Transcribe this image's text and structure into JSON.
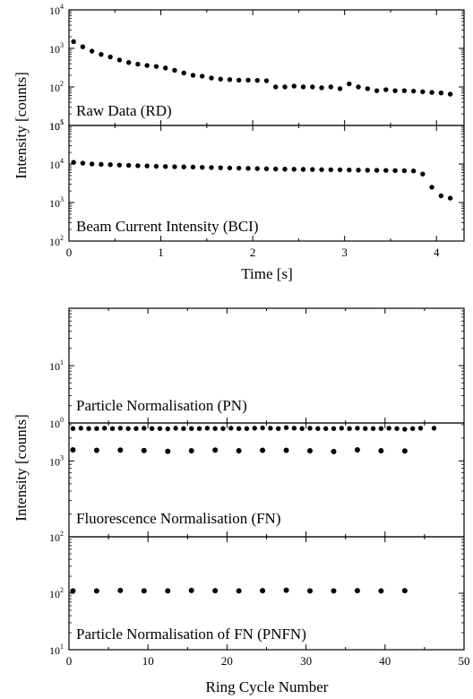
{
  "top_figure": {
    "ylabel": "Intensity [counts]",
    "xlabel": "Time [s]",
    "xlim": [
      0,
      4.3
    ],
    "xticks": [
      "0",
      "1",
      "2",
      "3",
      "4"
    ],
    "xtick_values": [
      0,
      1,
      2,
      3,
      4
    ]
  },
  "bottom_figure": {
    "ylabel": "Intensity [counts]",
    "xlabel": "Ring Cycle Number",
    "xlim": [
      0,
      50
    ],
    "xticks": [
      "0",
      "10",
      "20",
      "30",
      "40",
      "50"
    ],
    "xtick_values": [
      0,
      10,
      20,
      30,
      40,
      50
    ]
  },
  "chart_data": [
    {
      "type": "scatter",
      "title": "Raw Data (RD)",
      "scale": "log",
      "ylim_exp": [
        1,
        4
      ],
      "yticks": [
        {
          "base": "10",
          "exp": "1"
        },
        {
          "base": "10",
          "exp": "2"
        },
        {
          "base": "10",
          "exp": "3"
        },
        {
          "base": "10",
          "exp": "4"
        }
      ],
      "x": [
        0.05,
        0.15,
        0.25,
        0.35,
        0.45,
        0.55,
        0.65,
        0.75,
        0.85,
        0.95,
        1.05,
        1.15,
        1.25,
        1.35,
        1.45,
        1.55,
        1.65,
        1.75,
        1.85,
        1.95,
        2.05,
        2.15,
        2.25,
        2.35,
        2.45,
        2.55,
        2.65,
        2.75,
        2.85,
        2.95,
        3.05,
        3.15,
        3.25,
        3.35,
        3.45,
        3.55,
        3.65,
        3.75,
        3.85,
        3.95,
        4.05,
        4.15
      ],
      "y": [
        1500,
        1100,
        850,
        700,
        600,
        500,
        430,
        390,
        360,
        340,
        310,
        270,
        230,
        200,
        190,
        170,
        160,
        155,
        150,
        150,
        148,
        145,
        100,
        100,
        105,
        100,
        100,
        95,
        100,
        90,
        120,
        100,
        90,
        80,
        85,
        80,
        80,
        78,
        75,
        72,
        70,
        65
      ]
    },
    {
      "type": "scatter",
      "title": "Beam Current Intensity (BCI)",
      "scale": "log",
      "ylim_exp": [
        2,
        5
      ],
      "yticks": [
        {
          "base": "10",
          "exp": "2"
        },
        {
          "base": "10",
          "exp": "3"
        },
        {
          "base": "10",
          "exp": "4"
        },
        {
          "base": "10",
          "exp": "5"
        }
      ],
      "x": [
        0.05,
        0.15,
        0.25,
        0.35,
        0.45,
        0.55,
        0.65,
        0.75,
        0.85,
        0.95,
        1.05,
        1.15,
        1.25,
        1.35,
        1.45,
        1.55,
        1.65,
        1.75,
        1.85,
        1.95,
        2.05,
        2.15,
        2.25,
        2.35,
        2.45,
        2.55,
        2.65,
        2.75,
        2.85,
        2.95,
        3.05,
        3.15,
        3.25,
        3.35,
        3.45,
        3.55,
        3.65,
        3.75,
        3.85,
        3.95,
        4.05,
        4.15
      ],
      "y": [
        11000,
        10500,
        10000,
        9800,
        9600,
        9400,
        9200,
        9000,
        8900,
        8700,
        8600,
        8500,
        8400,
        8300,
        8200,
        8100,
        8000,
        7900,
        7800,
        7700,
        7600,
        7500,
        7400,
        7350,
        7300,
        7250,
        7200,
        7150,
        7100,
        7050,
        7000,
        6950,
        6900,
        6850,
        6800,
        6750,
        6700,
        6600,
        5500,
        2500,
        1500,
        1300
      ]
    },
    {
      "type": "scatter",
      "title": "Particle Normalisation (PN)",
      "scale": "log",
      "ylim_exp": [
        0,
        2
      ],
      "yticks": [
        {
          "base": "10",
          "exp": "1"
        },
        {
          "base": "10",
          "exp": "0"
        }
      ],
      "ytick_values": [
        1,
        0
      ],
      "x": [
        0.5,
        1.5,
        2.5,
        3.5,
        4.5,
        5.5,
        6.5,
        7.5,
        8.5,
        9.5,
        10.5,
        11.5,
        12.5,
        13.5,
        14.5,
        15.5,
        16.5,
        17.5,
        18.5,
        19.5,
        20.5,
        21.5,
        22.5,
        23.5,
        24.5,
        25.5,
        26.5,
        27.5,
        28.5,
        29.5,
        30.5,
        31.5,
        32.5,
        33.5,
        34.5,
        35.5,
        36.5,
        37.5,
        38.5,
        39.5,
        40.5,
        41.5,
        42.5,
        43.5,
        44.5,
        46.2
      ],
      "y": [
        0.8,
        0.81,
        0.8,
        0.8,
        0.81,
        0.8,
        0.81,
        0.8,
        0.8,
        0.81,
        0.8,
        0.8,
        0.79,
        0.81,
        0.8,
        0.8,
        0.8,
        0.81,
        0.8,
        0.8,
        0.81,
        0.8,
        0.8,
        0.81,
        0.82,
        0.81,
        0.8,
        0.83,
        0.81,
        0.8,
        0.81,
        0.8,
        0.8,
        0.8,
        0.81,
        0.8,
        0.81,
        0.8,
        0.8,
        0.8,
        0.81,
        0.8,
        0.78,
        0.8,
        0.81,
        0.81
      ]
    },
    {
      "type": "scatter",
      "title": "Fluorescence Normalisation (FN)",
      "scale": "log",
      "ylim_exp": [
        2,
        3.5
      ],
      "yticks": [
        {
          "base": "10",
          "exp": "3"
        },
        {
          "base": "10",
          "exp": "2"
        }
      ],
      "ytick_values": [
        3,
        2
      ],
      "x": [
        0.5,
        3.5,
        6.5,
        9.5,
        12.5,
        15.5,
        18.5,
        21.5,
        24.5,
        27.5,
        30.5,
        33.5,
        36.5,
        39.5,
        42.5
      ],
      "y": [
        1400,
        1380,
        1390,
        1370,
        1340,
        1360,
        1390,
        1360,
        1380,
        1380,
        1360,
        1330,
        1400,
        1360,
        1350
      ]
    },
    {
      "type": "scatter",
      "title": "Particle Normalisation of FN (PNFN)",
      "scale": "log",
      "ylim_exp": [
        1,
        3
      ],
      "yticks": [
        {
          "base": "10",
          "exp": "1"
        },
        {
          "base": "10",
          "exp": "2"
        }
      ],
      "ytick_values": [
        1,
        2
      ],
      "x": [
        0.5,
        3.5,
        6.5,
        9.5,
        12.5,
        15.5,
        18.5,
        21.5,
        24.5,
        27.5,
        30.5,
        33.5,
        36.5,
        39.5,
        42.5
      ],
      "y": [
        110,
        110,
        112,
        110,
        110,
        112,
        111,
        110,
        111,
        113,
        110,
        110,
        111,
        110,
        111
      ]
    }
  ]
}
